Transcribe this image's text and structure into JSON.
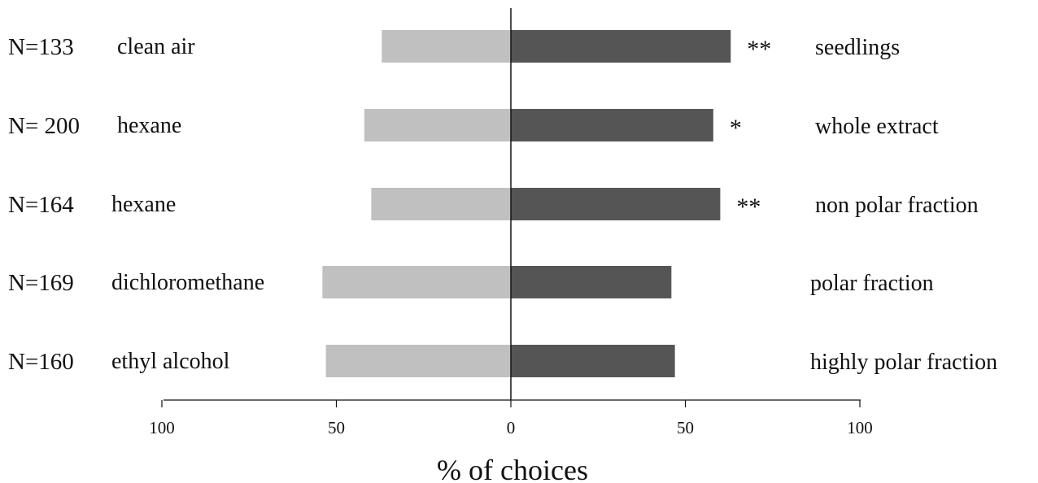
{
  "chart_data": {
    "type": "bar",
    "subtype": "diverging-horizontal",
    "xlabel": "% of choices",
    "xlim": [
      -100,
      100
    ],
    "x_ticks": [
      -100,
      -50,
      0,
      50,
      100
    ],
    "x_tick_labels": [
      "100",
      "50",
      "0",
      "50",
      "100"
    ],
    "colors": {
      "left": "#c0c0c0",
      "right": "#555555"
    },
    "rows": [
      {
        "n_label": "N=133",
        "left_label": "clean air",
        "left_value": 37,
        "right_label": "seedlings",
        "right_value": 63,
        "significance": "**"
      },
      {
        "n_label": "N= 200",
        "left_label": "hexane",
        "left_value": 42,
        "right_label": "whole extract",
        "right_value": 58,
        "significance": "*"
      },
      {
        "n_label": "N=164",
        "left_label": "hexane",
        "left_value": 40,
        "right_label": "non polar fraction",
        "right_value": 60,
        "significance": "**"
      },
      {
        "n_label": "N=169",
        "left_label": "dichloromethane",
        "left_value": 54,
        "right_label": "polar fraction",
        "right_value": 46,
        "significance": ""
      },
      {
        "n_label": "N=160",
        "left_label": "ethyl alcohol",
        "left_value": 53,
        "right_label": "highly polar fraction",
        "right_value": 47,
        "significance": ""
      }
    ]
  }
}
